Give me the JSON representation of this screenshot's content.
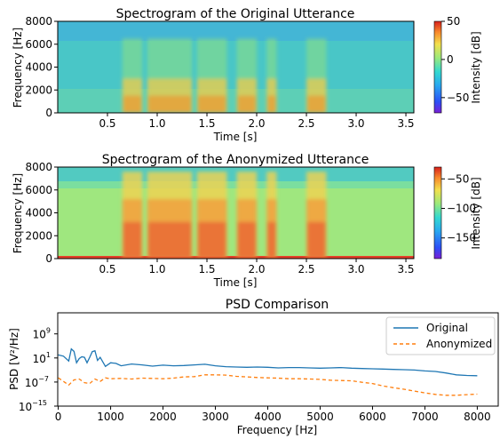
{
  "chart_data": [
    {
      "type": "heatmap",
      "title": "Spectrogram of the Original Utterance",
      "xlabel": "Time [s]",
      "ylabel": "Frequency [Hz]",
      "xlim": [
        0.0,
        3.58
      ],
      "ylim": [
        0,
        8000
      ],
      "xticks": [
        "0.5",
        "1.0",
        "1.5",
        "2.0",
        "2.5",
        "3.0",
        "3.5"
      ],
      "xtick_values": [
        0.5,
        1.0,
        1.5,
        2.0,
        2.5,
        3.0,
        3.5
      ],
      "yticks": [
        "0",
        "2000",
        "4000",
        "6000",
        "8000"
      ],
      "ytick_values": [
        0,
        2000,
        4000,
        6000,
        8000
      ],
      "colorbar": {
        "label": "Intensity [dB]",
        "range": [
          -70,
          50
        ],
        "ticks": [
          "50",
          "0",
          "−50"
        ],
        "tick_values": [
          50,
          0,
          -50
        ],
        "colormap": "jet"
      },
      "speech_segments_s": [
        [
          0.65,
          0.85
        ],
        [
          0.9,
          1.35
        ],
        [
          1.4,
          1.7
        ],
        [
          1.8,
          2.0
        ],
        [
          2.1,
          2.2
        ],
        [
          2.5,
          2.7
        ]
      ]
    },
    {
      "type": "heatmap",
      "title": "Spectrogram of the Anonymized Utterance",
      "xlabel": "Time [s]",
      "ylabel": "Frequency [Hz]",
      "xlim": [
        0.0,
        3.58
      ],
      "ylim": [
        0,
        8000
      ],
      "xticks": [
        "0.5",
        "1.0",
        "1.5",
        "2.0",
        "2.5",
        "3.0",
        "3.5"
      ],
      "xtick_values": [
        0.5,
        1.0,
        1.5,
        2.0,
        2.5,
        3.0,
        3.5
      ],
      "yticks": [
        "0",
        "2000",
        "4000",
        "6000",
        "8000"
      ],
      "ytick_values": [
        0,
        2000,
        4000,
        6000,
        8000
      ],
      "colorbar": {
        "label": "Intensity [dB]",
        "range": [
          -185,
          -30
        ],
        "ticks": [
          "−50",
          "−100",
          "−150"
        ],
        "tick_values": [
          -50,
          -100,
          -150
        ],
        "colormap": "jet"
      },
      "speech_segments_s": [
        [
          0.65,
          0.85
        ],
        [
          0.9,
          1.35
        ],
        [
          1.4,
          1.7
        ],
        [
          1.8,
          2.0
        ],
        [
          2.1,
          2.2
        ],
        [
          2.5,
          2.7
        ]
      ]
    },
    {
      "type": "line",
      "title": "PSD Comparison",
      "xlabel": "Frequency [Hz]",
      "ylabel": "PSD [V²/Hz]",
      "yscale": "log",
      "xlim": [
        -10,
        8400
      ],
      "ylim_exp": [
        -15,
        16
      ],
      "xticks": [
        "0",
        "1000",
        "2000",
        "3000",
        "4000",
        "5000",
        "6000",
        "7000",
        "8000"
      ],
      "xtick_values": [
        0,
        1000,
        2000,
        3000,
        4000,
        5000,
        6000,
        7000,
        8000
      ],
      "yticks": [
        "10",
        "10",
        "10",
        "10"
      ],
      "ytick_exponents": [
        "9",
        "1",
        "−7",
        "−15"
      ],
      "ytick_exp_values": [
        9,
        1,
        -7,
        -15
      ],
      "legend": "top-right",
      "series": [
        {
          "name": "Original",
          "color": "#1f77b4",
          "style": "solid",
          "x": [
            0,
            100,
            200,
            250,
            300,
            350,
            400,
            450,
            500,
            550,
            600,
            650,
            700,
            750,
            800,
            900,
            1000,
            1100,
            1200,
            1400,
            1600,
            1800,
            2000,
            2200,
            2400,
            2600,
            2800,
            3000,
            3200,
            3400,
            3600,
            3800,
            4000,
            4200,
            4400,
            4600,
            4800,
            5000,
            5200,
            5400,
            5600,
            5800,
            6000,
            6200,
            6400,
            6600,
            6800,
            7000,
            7200,
            7400,
            7600,
            7800,
            8000
          ],
          "y_exp": [
            2.0,
            1.6,
            0.0,
            4.0,
            3.2,
            -0.6,
            0.8,
            1.4,
            1.2,
            -0.6,
            1.2,
            3.1,
            3.4,
            0.2,
            1.2,
            -1.8,
            -0.6,
            -0.8,
            -1.6,
            -1.0,
            -1.3,
            -1.7,
            -1.4,
            -1.6,
            -1.5,
            -1.3,
            -1.1,
            -1.6,
            -1.9,
            -2.0,
            -2.1,
            -2.0,
            -2.1,
            -2.3,
            -2.2,
            -2.2,
            -2.3,
            -2.4,
            -2.3,
            -2.2,
            -2.4,
            -2.5,
            -2.6,
            -2.7,
            -2.8,
            -2.9,
            -3.0,
            -3.3,
            -3.5,
            -4.0,
            -4.6,
            -4.8,
            -4.9
          ]
        },
        {
          "name": "Anonymized",
          "color": "#ff7f0e",
          "style": "dashed",
          "x": [
            0,
            100,
            200,
            300,
            400,
            500,
            600,
            700,
            800,
            900,
            1000,
            1200,
            1400,
            1600,
            1800,
            2000,
            2200,
            2400,
            2600,
            2800,
            3000,
            3200,
            3400,
            3600,
            3800,
            4000,
            4200,
            4400,
            4600,
            4800,
            5000,
            5200,
            5400,
            5600,
            5800,
            6000,
            6200,
            6400,
            6600,
            6800,
            7000,
            7200,
            7400,
            7600,
            7800,
            8000
          ],
          "y_exp": [
            -5.6,
            -6.8,
            -8.0,
            -6.3,
            -6.0,
            -7.2,
            -7.5,
            -6.0,
            -6.8,
            -5.6,
            -5.9,
            -5.8,
            -6.0,
            -5.7,
            -5.8,
            -5.9,
            -5.7,
            -5.3,
            -5.2,
            -4.6,
            -4.6,
            -4.7,
            -5.1,
            -5.3,
            -5.5,
            -5.6,
            -5.7,
            -5.9,
            -5.9,
            -6.0,
            -6.1,
            -6.4,
            -6.5,
            -6.6,
            -7.1,
            -7.5,
            -8.3,
            -8.9,
            -9.4,
            -10.0,
            -10.6,
            -11.1,
            -11.4,
            -11.4,
            -11.2,
            -11.0
          ]
        }
      ]
    }
  ]
}
